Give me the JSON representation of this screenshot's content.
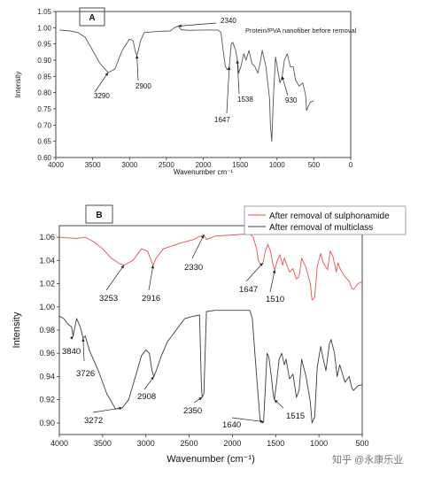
{
  "watermark": "知乎 @永康乐业",
  "chart_data": [
    {
      "type": "line",
      "panel_label": "A",
      "xlabel": "Wavenumber cm⁻¹",
      "ylabel": "Intensity",
      "xlim": [
        4000,
        0
      ],
      "ylim": [
        0.6,
        1.05
      ],
      "x_ticks": [
        4000,
        3500,
        3000,
        2500,
        2000,
        1500,
        1000,
        500,
        0
      ],
      "y_ticks": [
        0.6,
        0.65,
        0.7,
        0.75,
        0.8,
        0.85,
        0.9,
        0.95,
        1.0,
        1.05
      ],
      "y_tick_decimals": 2,
      "grid": false,
      "color": "#555555",
      "series": [
        {
          "name": "Protein/PVA nanofiber before removal",
          "points": [
            [
              3950,
              0.993
            ],
            [
              3800,
              0.99
            ],
            [
              3700,
              0.985
            ],
            [
              3600,
              0.97
            ],
            [
              3500,
              0.93
            ],
            [
              3400,
              0.89
            ],
            [
              3290,
              0.862
            ],
            [
              3200,
              0.872
            ],
            [
              3100,
              0.93
            ],
            [
              3000,
              0.965
            ],
            [
              2950,
              0.96
            ],
            [
              2920,
              0.925
            ],
            [
              2900,
              0.915
            ],
            [
              2880,
              0.93
            ],
            [
              2850,
              0.96
            ],
            [
              2800,
              0.985
            ],
            [
              2600,
              0.989
            ],
            [
              2450,
              0.99
            ],
            [
              2390,
              1.0
            ],
            [
              2340,
              1.005
            ],
            [
              2300,
              0.994
            ],
            [
              2200,
              0.992
            ],
            [
              2000,
              0.993
            ],
            [
              1800,
              0.993
            ],
            [
              1760,
              0.985
            ],
            [
              1730,
              0.93
            ],
            [
              1700,
              0.88
            ],
            [
              1670,
              0.87
            ],
            [
              1647,
              0.88
            ],
            [
              1620,
              0.95
            ],
            [
              1600,
              0.955
            ],
            [
              1560,
              0.93
            ],
            [
              1538,
              0.9
            ],
            [
              1520,
              0.86
            ],
            [
              1490,
              0.88
            ],
            [
              1450,
              0.92
            ],
            [
              1420,
              0.9
            ],
            [
              1380,
              0.93
            ],
            [
              1340,
              0.89
            ],
            [
              1300,
              0.88
            ],
            [
              1260,
              0.86
            ],
            [
              1230,
              0.89
            ],
            [
              1200,
              0.93
            ],
            [
              1150,
              0.88
            ],
            [
              1100,
              0.78
            ],
            [
              1090,
              0.7
            ],
            [
              1070,
              0.65
            ],
            [
              1050,
              0.78
            ],
            [
              1020,
              0.91
            ],
            [
              990,
              0.87
            ],
            [
              960,
              0.83
            ],
            [
              930,
              0.85
            ],
            [
              900,
              0.9
            ],
            [
              860,
              0.92
            ],
            [
              820,
              0.88
            ],
            [
              780,
              0.88
            ],
            [
              750,
              0.84
            ],
            [
              700,
              0.82
            ],
            [
              650,
              0.83
            ],
            [
              610,
              0.79
            ],
            [
              600,
              0.745
            ],
            [
              570,
              0.76
            ],
            [
              550,
              0.77
            ],
            [
              500,
              0.775
            ]
          ]
        }
      ],
      "annotations": [
        {
          "text": "3290",
          "x": 3290,
          "y": 0.862
        },
        {
          "text": "2900",
          "x": 2900,
          "y": 0.915
        },
        {
          "text": "2340",
          "x": 2340,
          "y": 1.005
        },
        {
          "text": "1647",
          "x": 1647,
          "y": 0.88
        },
        {
          "text": "1538",
          "x": 1538,
          "y": 0.9
        },
        {
          "text": "930",
          "x": 930,
          "y": 0.85
        }
      ]
    },
    {
      "type": "line",
      "panel_label": "B",
      "xlabel": "Wavenumber (cm⁻¹)",
      "ylabel": "Intensity",
      "xlim": [
        4000,
        500
      ],
      "ylim": [
        0.89,
        1.07
      ],
      "x_ticks": [
        4000,
        3500,
        3000,
        2500,
        2000,
        1500,
        1000,
        500
      ],
      "y_ticks": [
        0.9,
        0.92,
        0.94,
        0.96,
        0.98,
        1.0,
        1.02,
        1.04,
        1.06
      ],
      "y_tick_decimals": 2,
      "grid": false,
      "legend_position": "top-right",
      "series": [
        {
          "name": "After removal of sulphonamide",
          "color": "#e8514a",
          "points": [
            [
              4000,
              1.06
            ],
            [
              3800,
              1.059
            ],
            [
              3700,
              1.06
            ],
            [
              3600,
              1.056
            ],
            [
              3500,
              1.05
            ],
            [
              3400,
              1.042
            ],
            [
              3300,
              1.037
            ],
            [
              3253,
              1.036
            ],
            [
              3150,
              1.04
            ],
            [
              3050,
              1.05
            ],
            [
              2980,
              1.048
            ],
            [
              2930,
              1.038
            ],
            [
              2916,
              1.036
            ],
            [
              2880,
              1.042
            ],
            [
              2800,
              1.05
            ],
            [
              2600,
              1.055
            ],
            [
              2450,
              1.058
            ],
            [
              2400,
              1.06
            ],
            [
              2330,
              1.062
            ],
            [
              2300,
              1.058
            ],
            [
              2200,
              1.061
            ],
            [
              2000,
              1.062
            ],
            [
              1800,
              1.063
            ],
            [
              1760,
              1.06
            ],
            [
              1720,
              1.05
            ],
            [
              1700,
              1.04
            ],
            [
              1670,
              1.036
            ],
            [
              1647,
              1.038
            ],
            [
              1620,
              1.048
            ],
            [
              1590,
              1.054
            ],
            [
              1560,
              1.048
            ],
            [
              1530,
              1.036
            ],
            [
              1510,
              1.032
            ],
            [
              1480,
              1.04
            ],
            [
              1450,
              1.045
            ],
            [
              1420,
              1.036
            ],
            [
              1400,
              1.042
            ],
            [
              1380,
              1.038
            ],
            [
              1340,
              1.03
            ],
            [
              1300,
              1.033
            ],
            [
              1260,
              1.024
            ],
            [
              1230,
              1.026
            ],
            [
              1200,
              1.042
            ],
            [
              1150,
              1.034
            ],
            [
              1100,
              1.02
            ],
            [
              1080,
              1.006
            ],
            [
              1050,
              1.008
            ],
            [
              1020,
              1.035
            ],
            [
              980,
              1.046
            ],
            [
              950,
              1.038
            ],
            [
              900,
              1.032
            ],
            [
              870,
              1.048
            ],
            [
              840,
              1.044
            ],
            [
              800,
              1.03
            ],
            [
              780,
              1.038
            ],
            [
              750,
              1.032
            ],
            [
              700,
              1.026
            ],
            [
              650,
              1.022
            ],
            [
              620,
              1.016
            ],
            [
              600,
              1.015
            ],
            [
              550,
              1.02
            ],
            [
              500,
              1.022
            ]
          ]
        },
        {
          "name": "After removal of multiclass",
          "color": "#3c3c3c",
          "points": [
            [
              4000,
              0.992
            ],
            [
              3950,
              0.99
            ],
            [
              3900,
              0.985
            ],
            [
              3860,
              0.983
            ],
            [
              3840,
              0.975
            ],
            [
              3800,
              0.99
            ],
            [
              3760,
              0.983
            ],
            [
              3726,
              0.973
            ],
            [
              3700,
              0.975
            ],
            [
              3650,
              0.962
            ],
            [
              3550,
              0.945
            ],
            [
              3450,
              0.925
            ],
            [
              3350,
              0.912
            ],
            [
              3272,
              0.913
            ],
            [
              3200,
              0.92
            ],
            [
              3100,
              0.945
            ],
            [
              3050,
              0.958
            ],
            [
              3000,
              0.963
            ],
            [
              2960,
              0.96
            ],
            [
              2930,
              0.945
            ],
            [
              2908,
              0.94
            ],
            [
              2880,
              0.945
            ],
            [
              2820,
              0.958
            ],
            [
              2750,
              0.97
            ],
            [
              2650,
              0.98
            ],
            [
              2550,
              0.99
            ],
            [
              2450,
              0.992
            ],
            [
              2380,
              0.993
            ],
            [
              2360,
              0.935
            ],
            [
              2350,
              0.922
            ],
            [
              2330,
              0.925
            ],
            [
              2300,
              0.996
            ],
            [
              2200,
              0.997
            ],
            [
              2000,
              0.997
            ],
            [
              1800,
              0.997
            ],
            [
              1770,
              0.99
            ],
            [
              1740,
              0.96
            ],
            [
              1710,
              0.93
            ],
            [
              1680,
              0.902
            ],
            [
              1650,
              0.9
            ],
            [
              1640,
              0.901
            ],
            [
              1620,
              0.93
            ],
            [
              1600,
              0.96
            ],
            [
              1580,
              0.957
            ],
            [
              1550,
              0.94
            ],
            [
              1530,
              0.925
            ],
            [
              1515,
              0.92
            ],
            [
              1490,
              0.935
            ],
            [
              1460,
              0.955
            ],
            [
              1430,
              0.96
            ],
            [
              1400,
              0.95
            ],
            [
              1380,
              0.955
            ],
            [
              1340,
              0.938
            ],
            [
              1300,
              0.942
            ],
            [
              1260,
              0.922
            ],
            [
              1230,
              0.928
            ],
            [
              1200,
              0.955
            ],
            [
              1150,
              0.94
            ],
            [
              1100,
              0.918
            ],
            [
              1080,
              0.9
            ],
            [
              1050,
              0.905
            ],
            [
              1020,
              0.948
            ],
            [
              980,
              0.966
            ],
            [
              950,
              0.955
            ],
            [
              920,
              0.945
            ],
            [
              880,
              0.968
            ],
            [
              860,
              0.972
            ],
            [
              820,
              0.96
            ],
            [
              790,
              0.94
            ],
            [
              760,
              0.95
            ],
            [
              700,
              0.935
            ],
            [
              650,
              0.94
            ],
            [
              620,
              0.93
            ],
            [
              600,
              0.928
            ],
            [
              550,
              0.932
            ],
            [
              500,
              0.933
            ]
          ]
        }
      ],
      "annotations": [
        {
          "text": "3840",
          "x": 3840,
          "y": 0.975
        },
        {
          "text": "3726",
          "x": 3726,
          "y": 0.973
        },
        {
          "text": "3272",
          "x": 3272,
          "y": 0.913
        },
        {
          "text": "2908",
          "x": 2908,
          "y": 0.94
        },
        {
          "text": "2350",
          "x": 2350,
          "y": 0.922
        },
        {
          "text": "1640",
          "x": 1640,
          "y": 0.901
        },
        {
          "text": "1515",
          "x": 1515,
          "y": 0.92
        },
        {
          "text": "3253",
          "x": 3253,
          "y": 1.036
        },
        {
          "text": "2916",
          "x": 2916,
          "y": 1.036
        },
        {
          "text": "2330",
          "x": 2330,
          "y": 1.062
        },
        {
          "text": "1647",
          "x": 1647,
          "y": 1.038
        },
        {
          "text": "1510",
          "x": 1510,
          "y": 1.032
        }
      ]
    }
  ]
}
